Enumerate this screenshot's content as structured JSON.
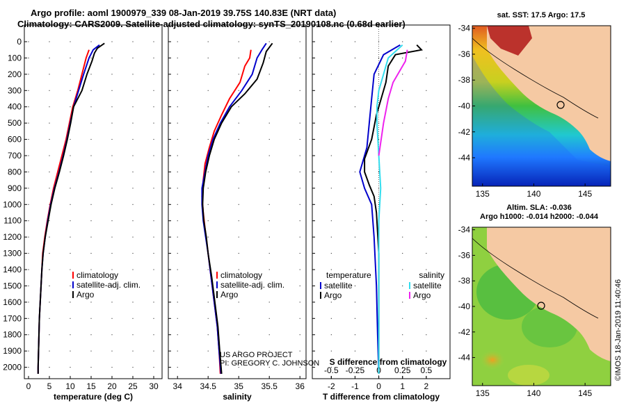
{
  "header": {
    "line1": "Argo profile: aoml 1900979_339 08-Jan-2019 39.75S 140.83E (NRT data)",
    "line2": "Climatology: CARS2009. Satellite-adjusted climatology: synTS_20190108.nc (0.68d earlier)"
  },
  "credit": {
    "line1": "US ARGO PROJECT",
    "line2": "PI: GREGORY C. JOHNSON"
  },
  "timestamp": "©IMOS 18-Jan-2019 11:40:46",
  "colors": {
    "climatology": "#ff0000",
    "satellite": "#0000cc",
    "argo": "#000000",
    "sal_satellite": "#33ddee",
    "sal_argo": "#ee22ee"
  },
  "chart_data": [
    {
      "type": "line",
      "xlabel": "temperature (deg C)",
      "xlim": [
        -1,
        32
      ],
      "xticks": [
        0,
        5,
        10,
        15,
        20,
        25,
        30
      ],
      "ylim": [
        2070,
        0
      ],
      "yticks": [
        0,
        100,
        200,
        300,
        400,
        500,
        600,
        700,
        800,
        900,
        1000,
        1100,
        1200,
        1300,
        1400,
        1500,
        1600,
        1700,
        1800,
        1900,
        2000
      ],
      "legend": [
        "climatology",
        "satellite-adj. clim.",
        "Argo"
      ],
      "series": [
        {
          "name": "climatology",
          "color": "#ff0000",
          "points": [
            [
              14.5,
              50
            ],
            [
              13.8,
              100
            ],
            [
              12.8,
              200
            ],
            [
              11.8,
              300
            ],
            [
              10.6,
              400
            ],
            [
              9.8,
              500
            ],
            [
              9.0,
              600
            ],
            [
              8.0,
              700
            ],
            [
              7.0,
              800
            ],
            [
              6.0,
              900
            ],
            [
              5.2,
              1000
            ],
            [
              4.5,
              1100
            ],
            [
              3.9,
              1200
            ],
            [
              3.4,
              1300
            ],
            [
              3.2,
              1400
            ],
            [
              3.0,
              1500
            ],
            [
              2.8,
              1600
            ],
            [
              2.6,
              1700
            ],
            [
              2.5,
              1800
            ],
            [
              2.4,
              1900
            ],
            [
              2.3,
              2000
            ],
            [
              2.3,
              2040
            ]
          ]
        },
        {
          "name": "satellite-adj. clim.",
          "color": "#0000cc",
          "points": [
            [
              17.0,
              20
            ],
            [
              15.5,
              50
            ],
            [
              14.5,
              100
            ],
            [
              13.2,
              200
            ],
            [
              12.0,
              300
            ],
            [
              10.8,
              400
            ],
            [
              10.0,
              500
            ],
            [
              9.2,
              600
            ],
            [
              8.3,
              700
            ],
            [
              7.3,
              800
            ],
            [
              6.2,
              900
            ],
            [
              5.3,
              1000
            ],
            [
              4.6,
              1100
            ],
            [
              4.0,
              1200
            ],
            [
              3.5,
              1300
            ],
            [
              3.2,
              1400
            ],
            [
              3.0,
              1500
            ],
            [
              2.8,
              1600
            ],
            [
              2.6,
              1700
            ],
            [
              2.5,
              1800
            ],
            [
              2.4,
              1900
            ],
            [
              2.3,
              2000
            ],
            [
              2.3,
              2040
            ]
          ]
        },
        {
          "name": "Argo",
          "color": "#000000",
          "points": [
            [
              18.2,
              10
            ],
            [
              16.5,
              40
            ],
            [
              15.8,
              70
            ],
            [
              15.2,
              120
            ],
            [
              14.0,
              200
            ],
            [
              12.8,
              300
            ],
            [
              10.8,
              400
            ],
            [
              10.1,
              500
            ],
            [
              9.3,
              600
            ],
            [
              8.4,
              700
            ],
            [
              7.4,
              800
            ],
            [
              6.3,
              900
            ],
            [
              5.4,
              1000
            ],
            [
              4.7,
              1100
            ],
            [
              4.0,
              1200
            ],
            [
              3.5,
              1300
            ],
            [
              3.2,
              1400
            ],
            [
              3.0,
              1500
            ],
            [
              2.8,
              1600
            ],
            [
              2.6,
              1700
            ],
            [
              2.5,
              1800
            ],
            [
              2.4,
              1900
            ],
            [
              2.3,
              2000
            ],
            [
              2.3,
              2040
            ]
          ]
        }
      ]
    },
    {
      "type": "line",
      "xlabel": "salinity",
      "xlim": [
        33.85,
        36.1
      ],
      "xticks": [
        34,
        34.5,
        35,
        35.5,
        36
      ],
      "ylim": [
        2070,
        0
      ],
      "legend": [
        "climatology",
        "satellite-adj. clim.",
        "Argo"
      ],
      "series": [
        {
          "name": "climatology",
          "color": "#ff0000",
          "points": [
            [
              35.2,
              50
            ],
            [
              35.18,
              100
            ],
            [
              35.1,
              150
            ],
            [
              35.02,
              250
            ],
            [
              34.85,
              350
            ],
            [
              34.72,
              450
            ],
            [
              34.6,
              550
            ],
            [
              34.52,
              650
            ],
            [
              34.45,
              750
            ],
            [
              34.42,
              850
            ],
            [
              34.4,
              950
            ],
            [
              34.42,
              1050
            ],
            [
              34.45,
              1150
            ],
            [
              34.5,
              1300
            ],
            [
              34.55,
              1450
            ],
            [
              34.6,
              1600
            ],
            [
              34.65,
              1750
            ],
            [
              34.68,
              1900
            ],
            [
              34.7,
              2040
            ]
          ]
        },
        {
          "name": "satellite-adj. clim.",
          "color": "#0000cc",
          "points": [
            [
              35.45,
              10
            ],
            [
              35.38,
              50
            ],
            [
              35.3,
              100
            ],
            [
              35.22,
              200
            ],
            [
              35.05,
              300
            ],
            [
              34.85,
              400
            ],
            [
              34.7,
              500
            ],
            [
              34.58,
              600
            ],
            [
              34.5,
              700
            ],
            [
              34.45,
              800
            ],
            [
              34.4,
              900
            ],
            [
              34.4,
              1000
            ],
            [
              34.42,
              1100
            ],
            [
              34.46,
              1200
            ],
            [
              34.5,
              1300
            ],
            [
              34.55,
              1450
            ],
            [
              34.6,
              1600
            ],
            [
              34.65,
              1750
            ],
            [
              34.68,
              1900
            ],
            [
              34.71,
              2040
            ]
          ]
        },
        {
          "name": "Argo",
          "color": "#000000",
          "points": [
            [
              35.55,
              10
            ],
            [
              35.45,
              60
            ],
            [
              35.4,
              130
            ],
            [
              35.3,
              230
            ],
            [
              35.1,
              320
            ],
            [
              34.88,
              400
            ],
            [
              34.72,
              500
            ],
            [
              34.6,
              600
            ],
            [
              34.52,
              700
            ],
            [
              34.46,
              800
            ],
            [
              34.42,
              900
            ],
            [
              34.41,
              1000
            ],
            [
              34.43,
              1100
            ],
            [
              34.47,
              1200
            ],
            [
              34.5,
              1300
            ],
            [
              34.56,
              1450
            ],
            [
              34.61,
              1600
            ],
            [
              34.66,
              1750
            ],
            [
              34.69,
              1900
            ],
            [
              34.72,
              2040
            ]
          ]
        }
      ]
    },
    {
      "type": "line",
      "xlabel": "T difference from climatology",
      "x2label": "S difference from climatology",
      "xlim": [
        -2.8,
        3.0
      ],
      "xticks": [
        -2,
        -1,
        0,
        1,
        2
      ],
      "x2lim": [
        -0.7,
        0.75
      ],
      "x2ticks": [
        -0.5,
        -0.25,
        0,
        0.25,
        0.5
      ],
      "ylim": [
        2070,
        0
      ],
      "legend_left": {
        "title": "temperature",
        "items": [
          "satellite",
          "Argo"
        ]
      },
      "legend_right": {
        "title": "salinity",
        "items": [
          "satellite",
          "Argo"
        ]
      },
      "series": [
        {
          "name": "T satellite",
          "color": "#0000cc",
          "points": [
            [
              0.9,
              20
            ],
            [
              0.2,
              80
            ],
            [
              -0.2,
              200
            ],
            [
              -0.3,
              350
            ],
            [
              -0.4,
              500
            ],
            [
              -0.5,
              650
            ],
            [
              -0.8,
              800
            ],
            [
              -0.6,
              900
            ],
            [
              -0.3,
              1000
            ],
            [
              -0.2,
              1200
            ],
            [
              -0.1,
              1500
            ],
            [
              -0.05,
              1800
            ],
            [
              0,
              2040
            ]
          ]
        },
        {
          "name": "T Argo",
          "color": "#000000",
          "points": [
            [
              1.6,
              20
            ],
            [
              1.8,
              50
            ],
            [
              0.7,
              80
            ],
            [
              0.4,
              150
            ],
            [
              0.3,
              250
            ],
            [
              0.1,
              350
            ],
            [
              -0.1,
              450
            ],
            [
              -0.3,
              600
            ],
            [
              -0.6,
              720
            ],
            [
              -0.6,
              800
            ],
            [
              -0.4,
              880
            ],
            [
              -0.2,
              950
            ],
            [
              -0.1,
              1050
            ],
            [
              0,
              1300
            ],
            [
              0,
              1600
            ],
            [
              0,
              2040
            ]
          ]
        },
        {
          "name": "S satellite",
          "color": "#33ddee",
          "points": [
            [
              0.25,
              20
            ],
            [
              0.1,
              100
            ],
            [
              0.05,
              200
            ],
            [
              0,
              300
            ],
            [
              -0.02,
              400
            ],
            [
              -0.02,
              500
            ],
            [
              0,
              700
            ],
            [
              0.02,
              900
            ],
            [
              0,
              1100
            ],
            [
              0,
              1400
            ],
            [
              0,
              1700
            ],
            [
              0,
              2040
            ]
          ]
        },
        {
          "name": "S Argo",
          "color": "#ee22ee",
          "points": [
            [
              0.3,
              50
            ],
            [
              0.28,
              120
            ],
            [
              0.22,
              180
            ],
            [
              0.15,
              250
            ],
            [
              0.1,
              350
            ],
            [
              0.05,
              500
            ],
            [
              0,
              700
            ]
          ]
        }
      ]
    },
    {
      "type": "heatmap",
      "title": "sat. SST: 17.5  Argo: 17.5",
      "xticks": [
        135,
        140,
        145
      ],
      "yticks": [
        -34,
        -36,
        -38,
        -40,
        -42,
        -44
      ],
      "xlim": [
        134,
        147.5
      ],
      "ylim": [
        -46.2,
        -33.8
      ]
    },
    {
      "type": "heatmap",
      "title": "Altim. SLA: -0.036",
      "subtitle": "Argo h1000: -0.014  h2000: -0.044",
      "xticks": [
        135,
        140,
        145
      ],
      "yticks": [
        -34,
        -36,
        -38,
        -40,
        -42,
        -44
      ],
      "xlim": [
        134,
        147.5
      ],
      "ylim": [
        -46.2,
        -33.8
      ]
    }
  ]
}
